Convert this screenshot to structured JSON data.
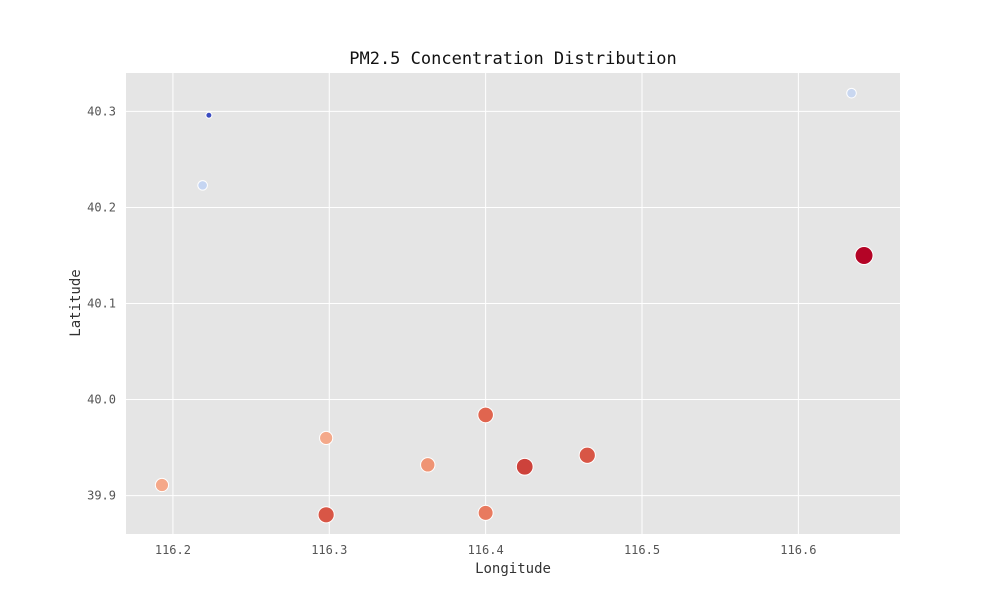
{
  "chart_data": {
    "type": "scatter",
    "title": "PM2.5 Concentration Distribution",
    "xlabel": "Longitude",
    "ylabel": "Latitude",
    "xlim": [
      116.17,
      116.665
    ],
    "ylim": [
      39.86,
      40.34
    ],
    "xticks": [
      "116.2",
      "116.3",
      "116.4",
      "116.5",
      "116.6"
    ],
    "yticks": [
      "39.9",
      "40.0",
      "40.1",
      "40.2",
      "40.3"
    ],
    "grid": true,
    "legend": "none",
    "background_color": "#e5e5e5",
    "colormap": "coolwarm",
    "points": [
      {
        "x": 116.223,
        "y": 40.296,
        "intensity": 0.0,
        "color": "#3b4cc0"
      },
      {
        "x": 116.634,
        "y": 40.319,
        "intensity": 0.3,
        "color": "#c9d7f0"
      },
      {
        "x": 116.219,
        "y": 40.223,
        "intensity": 0.3,
        "color": "#c5d5f2"
      },
      {
        "x": 116.642,
        "y": 40.15,
        "intensity": 1.0,
        "color": "#b40426"
      },
      {
        "x": 116.4,
        "y": 39.984,
        "intensity": 0.8,
        "color": "#e0654f"
      },
      {
        "x": 116.298,
        "y": 39.96,
        "intensity": 0.6,
        "color": "#f4a98a"
      },
      {
        "x": 116.363,
        "y": 39.932,
        "intensity": 0.7,
        "color": "#ef9474"
      },
      {
        "x": 116.425,
        "y": 39.93,
        "intensity": 0.9,
        "color": "#cd423b"
      },
      {
        "x": 116.465,
        "y": 39.942,
        "intensity": 0.85,
        "color": "#d85646"
      },
      {
        "x": 116.193,
        "y": 39.911,
        "intensity": 0.6,
        "color": "#f5a889"
      },
      {
        "x": 116.298,
        "y": 39.88,
        "intensity": 0.85,
        "color": "#d85646"
      },
      {
        "x": 116.4,
        "y": 39.882,
        "intensity": 0.75,
        "color": "#e87a5f"
      }
    ]
  }
}
